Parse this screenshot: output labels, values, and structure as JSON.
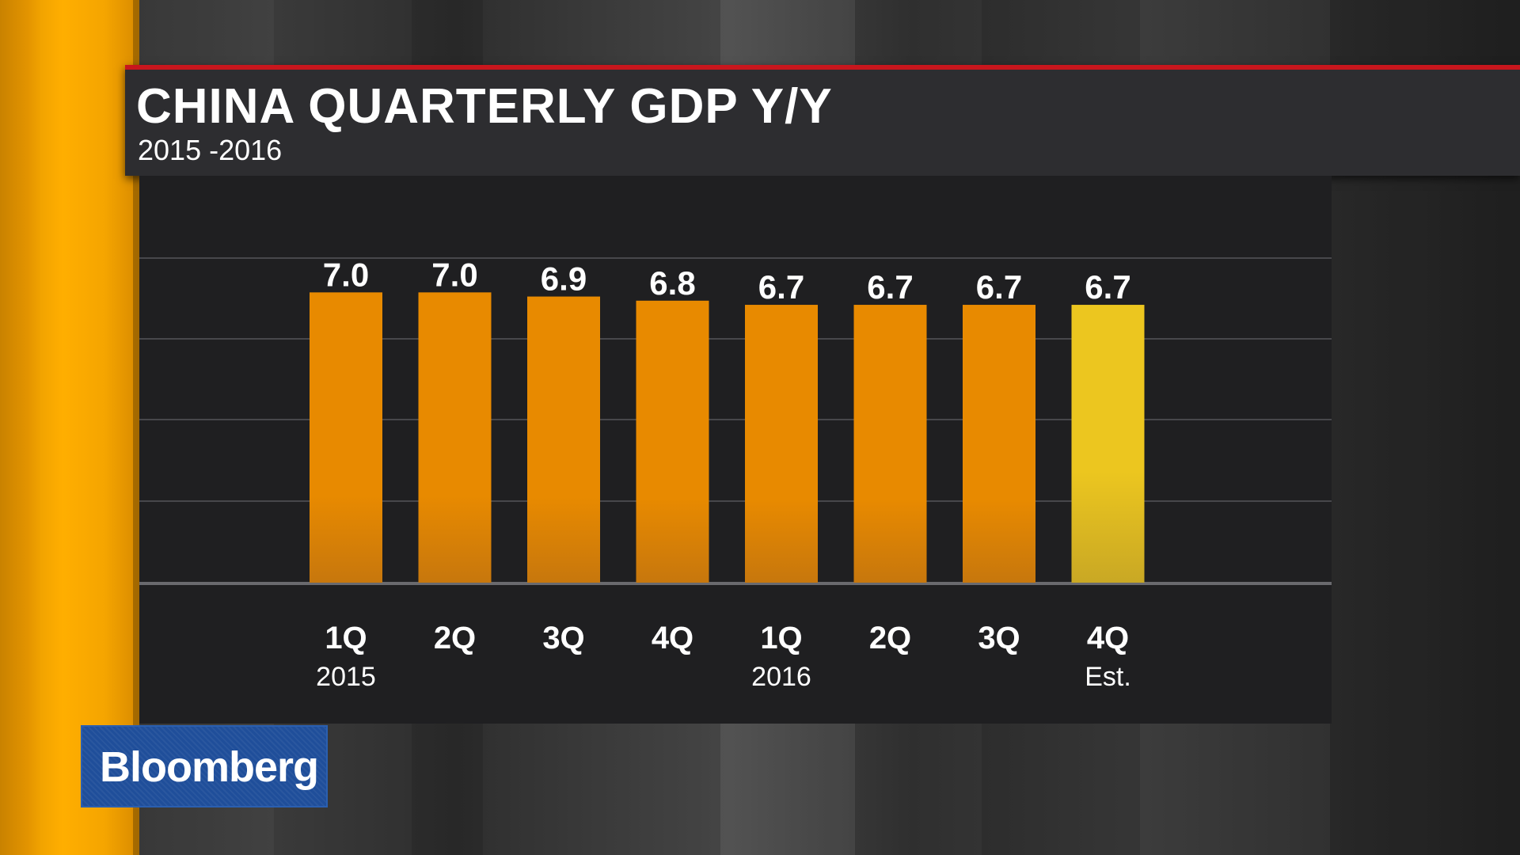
{
  "header": {
    "title": "CHINA QUARTERLY GDP Y/Y",
    "subtitle": "2015 -2016"
  },
  "logo": {
    "text": "Bloomberg"
  },
  "colors": {
    "bar": "#e88a00",
    "bar_dark": "#c7770d",
    "estimate_bar": "#ecc61f",
    "estimate_bar_dark": "#c9a824",
    "stripe": "#ffae00",
    "accent_red": "#c8161d",
    "logo_blue": "#1f4e9a"
  },
  "chart_data": {
    "type": "bar",
    "categories": [
      "1Q",
      "2Q",
      "3Q",
      "4Q",
      "1Q",
      "2Q",
      "3Q",
      "4Q"
    ],
    "sublabels": [
      "2015",
      "",
      "",
      "",
      "2016",
      "",
      "",
      "Est."
    ],
    "values": [
      7.0,
      7.0,
      6.9,
      6.8,
      6.7,
      6.7,
      6.7,
      6.7
    ],
    "value_labels": [
      "7.0",
      "7.0",
      "6.9",
      "6.8",
      "6.7",
      "6.7",
      "6.7",
      "6.7"
    ],
    "estimate": [
      false,
      false,
      false,
      false,
      false,
      false,
      false,
      true
    ],
    "title": "CHINA QUARTERLY GDP Y/Y",
    "subtitle": "2015 -2016",
    "ylim": [
      0,
      8.4
    ],
    "grid": true,
    "legend": "none"
  }
}
